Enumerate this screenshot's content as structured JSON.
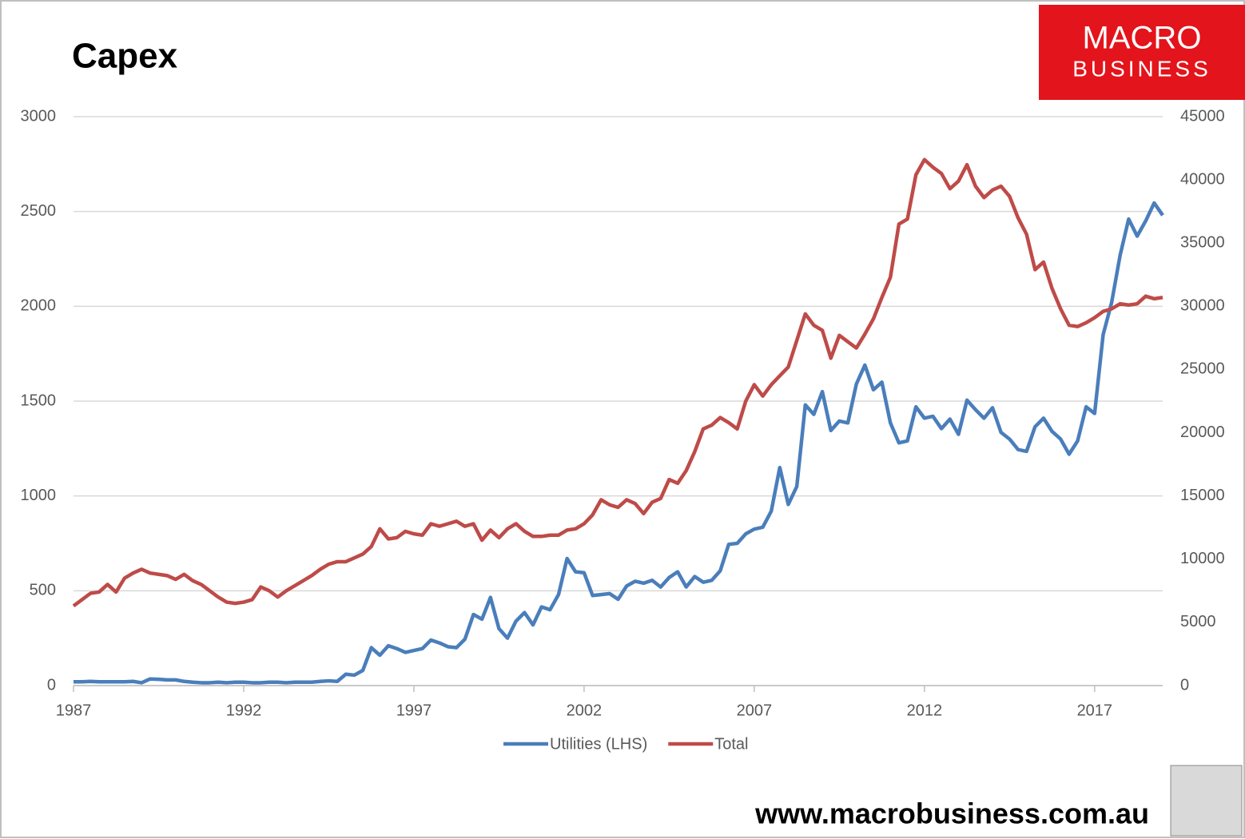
{
  "chart_data": {
    "type": "line",
    "title": "Capex",
    "x": [
      1987,
      1987.25,
      1987.5,
      1987.75,
      1988,
      1988.25,
      1988.5,
      1988.75,
      1989,
      1989.25,
      1989.5,
      1989.75,
      1990,
      1990.25,
      1990.5,
      1990.75,
      1991,
      1991.25,
      1991.5,
      1991.75,
      1992,
      1992.25,
      1992.5,
      1992.75,
      1993,
      1993.25,
      1993.5,
      1993.75,
      1994,
      1994.25,
      1994.5,
      1994.75,
      1995,
      1995.25,
      1995.5,
      1995.75,
      1996,
      1996.25,
      1996.5,
      1996.75,
      1997,
      1997.25,
      1997.5,
      1997.75,
      1998,
      1998.25,
      1998.5,
      1998.75,
      1999,
      1999.25,
      1999.5,
      1999.75,
      2000,
      2000.25,
      2000.5,
      2000.75,
      2001,
      2001.25,
      2001.5,
      2001.75,
      2002,
      2002.25,
      2002.5,
      2002.75,
      2003,
      2003.25,
      2003.5,
      2003.75,
      2004,
      2004.25,
      2004.5,
      2004.75,
      2005,
      2005.25,
      2005.5,
      2005.75,
      2006,
      2006.25,
      2006.5,
      2006.75,
      2007,
      2007.25,
      2007.5,
      2007.75,
      2008,
      2008.25,
      2008.5,
      2008.75,
      2009,
      2009.25,
      2009.5,
      2009.75,
      2010,
      2010.25,
      2010.5,
      2010.75,
      2011,
      2011.25,
      2011.5,
      2011.75,
      2012,
      2012.25,
      2012.5,
      2012.75,
      2013,
      2013.25,
      2013.5,
      2013.75,
      2014,
      2014.25,
      2014.5,
      2014.75,
      2015,
      2015.25,
      2015.5,
      2015.75,
      2016,
      2016.25,
      2016.5,
      2016.75,
      2017,
      2017.25,
      2017.5,
      2017.75,
      2018,
      2018.25,
      2018.5,
      2018.75,
      2019
    ],
    "series": [
      {
        "name": "Utilities (LHS)",
        "color": "#4a7ebb",
        "axis": "y",
        "values": [
          20,
          20,
          22,
          20,
          20,
          20,
          20,
          22,
          15,
          35,
          33,
          30,
          30,
          22,
          18,
          15,
          15,
          18,
          15,
          18,
          18,
          15,
          15,
          18,
          18,
          15,
          18,
          18,
          18,
          22,
          25,
          22,
          60,
          55,
          80,
          200,
          160,
          210,
          195,
          175,
          185,
          195,
          240,
          225,
          205,
          200,
          245,
          375,
          350,
          465,
          300,
          250,
          340,
          385,
          320,
          415,
          400,
          480,
          670,
          600,
          595,
          475,
          480,
          485,
          455,
          525,
          550,
          540,
          555,
          520,
          570,
          600,
          520,
          575,
          545,
          555,
          605,
          745,
          750,
          800,
          825,
          835,
          920,
          1150,
          955,
          1050,
          1480,
          1430,
          1550,
          1345,
          1395,
          1385,
          1590,
          1690,
          1560,
          1600,
          1385,
          1280,
          1290,
          1470,
          1410,
          1420,
          1355,
          1405,
          1325,
          1505,
          1455,
          1410,
          1465,
          1335,
          1300,
          1245,
          1235,
          1365,
          1410,
          1340,
          1300,
          1220,
          1290,
          1470,
          1435,
          1850,
          2020,
          2270,
          2460,
          2370,
          2450,
          2545,
          2480
        ]
      },
      {
        "name": "Total",
        "color": "#be4b48",
        "axis": "y2",
        "values": [
          6300,
          6800,
          7300,
          7400,
          8000,
          7400,
          8500,
          8900,
          9200,
          8900,
          8800,
          8700,
          8400,
          8800,
          8300,
          8000,
          7500,
          7000,
          6600,
          6500,
          6600,
          6800,
          7800,
          7500,
          7000,
          7500,
          7900,
          8300,
          8700,
          9200,
          9600,
          9800,
          9800,
          10100,
          10400,
          11000,
          12400,
          11600,
          11700,
          12200,
          12000,
          11900,
          12800,
          12600,
          12800,
          13000,
          12600,
          12800,
          11500,
          12300,
          11700,
          12400,
          12800,
          12200,
          11800,
          11800,
          11900,
          11900,
          12300,
          12400,
          12800,
          13500,
          14700,
          14300,
          14100,
          14700,
          14400,
          13600,
          14500,
          14800,
          16300,
          16000,
          17000,
          18500,
          20300,
          20600,
          21200,
          20800,
          20300,
          22500,
          23800,
          22900,
          23800,
          24500,
          25200,
          27300,
          29400,
          28500,
          28100,
          25900,
          27700,
          27200,
          26700,
          27800,
          29000,
          30700,
          32300,
          36500,
          36900,
          40400,
          41600,
          41000,
          40500,
          39300,
          39900,
          41200,
          39500,
          38600,
          39200,
          39500,
          38700,
          37000,
          35700,
          32900,
          33500,
          31400,
          29800,
          28500,
          28400,
          28700,
          29100,
          29600,
          29800,
          30200,
          30100,
          30200,
          30800,
          30600,
          30700
        ]
      }
    ],
    "xlim": [
      1987,
      2019
    ],
    "xticks": [
      1987,
      1992,
      1997,
      2002,
      2007,
      2012,
      2017
    ],
    "ylim": [
      0,
      3000
    ],
    "yticks": [
      0,
      500,
      1000,
      1500,
      2000,
      2500,
      3000
    ],
    "y2lim": [
      0,
      45000
    ],
    "y2ticks": [
      0,
      5000,
      10000,
      15000,
      20000,
      25000,
      30000,
      35000,
      40000,
      45000
    ],
    "grid": true,
    "legend": "bottom"
  },
  "branding": {
    "logo_top": "MACRO",
    "logo_bottom": "BUSINESS",
    "url": "www.macrobusiness.com.au"
  }
}
